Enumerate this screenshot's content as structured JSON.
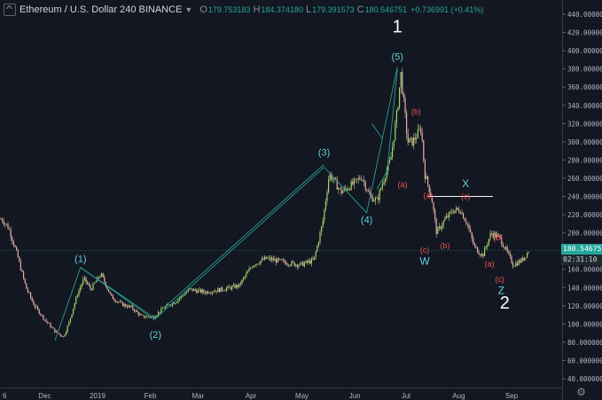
{
  "header": {
    "symbol_title": "Ethereum / U.S. Dollar 240 BINANCE",
    "open_key": "O",
    "open_val": "179.753183",
    "high_key": "H",
    "high_val": "184.374180",
    "low_key": "L",
    "low_val": "179.391573",
    "close_key": "C",
    "close_val": "180.546751",
    "change_val": "+0.736991 (+0.41%)"
  },
  "last_price_label": "180.546751",
  "countdown_label": "02:31:10",
  "icons": {
    "collapse": "chevron-collapse-icon",
    "settings": "gear-icon",
    "scroll": "arrow-icon"
  },
  "colors": {
    "background": "#131722",
    "candle_up": "#a5d66a",
    "candle_down": "#e6b0a8",
    "wave_line": "#2a9d8f",
    "label_cyan": "#5fd0d8",
    "label_red": "#ef5350",
    "label_white": "#ffffff",
    "xline": "#f5f5f5",
    "price_tag": "#26a69a"
  },
  "chart_data": {
    "type": "line",
    "title": "Ethereum / U.S. Dollar 240 BINANCE",
    "xlabel": "",
    "ylabel": "",
    "ylim": [
      30,
      450
    ],
    "y_ticks": [
      "440.000000",
      "420.000000",
      "400.000000",
      "380.000000",
      "360.000000",
      "340.000000",
      "320.000000",
      "300.000000",
      "280.000000",
      "260.000000",
      "240.000000",
      "220.000000",
      "200.000000",
      "180.000000",
      "160.000000",
      "140.000000",
      "120.000000",
      "100.000000",
      "80.000000",
      "60.000000",
      "40.000000"
    ],
    "x_ticks": [
      "6",
      "Dec",
      "2019",
      "Feb",
      "Mar",
      "Apr",
      "May",
      "Jun",
      "Jul",
      "Aug",
      "Sep"
    ],
    "last_price": 180.546751,
    "series": [
      {
        "x": [
          "2018-11-06",
          "2018-11-10",
          "2018-11-15",
          "2018-11-20",
          "2018-11-25",
          "2018-12-01",
          "2018-12-07",
          "2018-12-12",
          "2018-12-15",
          "2018-12-20",
          "2018-12-24",
          "2018-12-28",
          "2019-01-03",
          "2019-01-09",
          "2019-01-15",
          "2019-01-21",
          "2019-01-27",
          "2019-02-03",
          "2019-02-09",
          "2019-02-16",
          "2019-02-24",
          "2019-03-05",
          "2019-03-15",
          "2019-03-25",
          "2019-04-02",
          "2019-04-10",
          "2019-04-20",
          "2019-04-30",
          "2019-05-08",
          "2019-05-13",
          "2019-05-17",
          "2019-05-24",
          "2019-06-01",
          "2019-06-05",
          "2019-06-10",
          "2019-06-14",
          "2019-06-19",
          "2019-06-22",
          "2019-06-26",
          "2019-06-28",
          "2019-07-02",
          "2019-07-05",
          "2019-07-10",
          "2019-07-12",
          "2019-07-16",
          "2019-07-19",
          "2019-07-24",
          "2019-07-29",
          "2019-08-02",
          "2019-08-06",
          "2019-08-10",
          "2019-08-15",
          "2019-08-20",
          "2019-08-25",
          "2019-08-29",
          "2019-09-02",
          "2019-09-07",
          "2019-09-11"
        ],
        "values": [
          215,
          205,
          175,
          140,
          120,
          105,
          92,
          86,
          100,
          132,
          150,
          138,
          155,
          130,
          122,
          118,
          108,
          108,
          118,
          125,
          138,
          135,
          138,
          142,
          165,
          172,
          168,
          165,
          170,
          210,
          265,
          245,
          255,
          262,
          240,
          235,
          265,
          280,
          335,
          375,
          300,
          300,
          315,
          265,
          240,
          200,
          215,
          225,
          225,
          210,
          185,
          175,
          200,
          195,
          180,
          165,
          170,
          180
        ]
      }
    ],
    "wave_labels": [
      {
        "text": "(1)",
        "date": "2018-12-22",
        "price": 168,
        "color": "cyan"
      },
      {
        "text": "(2)",
        "date": "2019-02-04",
        "price": 85,
        "color": "cyan"
      },
      {
        "text": "(3)",
        "date": "2019-05-14",
        "price": 285,
        "color": "cyan"
      },
      {
        "text": "(4)",
        "date": "2019-06-08",
        "price": 211,
        "color": "cyan"
      },
      {
        "text": "(5)",
        "date": "2019-06-26",
        "price": 390,
        "color": "cyan"
      },
      {
        "text": "1",
        "date": "2019-06-26",
        "price": 420,
        "color": "white"
      },
      {
        "text": "(a)",
        "date": "2019-06-29",
        "price": 250,
        "color": "red"
      },
      {
        "text": "(b)",
        "date": "2019-07-07",
        "price": 330,
        "color": "red"
      },
      {
        "text": "(c)",
        "date": "2019-07-12",
        "price": 178,
        "color": "red"
      },
      {
        "text": "W",
        "date": "2019-07-12",
        "price": 165,
        "color": "cyan"
      },
      {
        "text": "(a)",
        "date": "2019-07-14",
        "price": 238,
        "color": "red"
      },
      {
        "text": "(b)",
        "date": "2019-07-24",
        "price": 183,
        "color": "red"
      },
      {
        "text": "(c)",
        "date": "2019-08-05",
        "price": 237,
        "color": "red"
      },
      {
        "text": "X",
        "date": "2019-08-05",
        "price": 250,
        "color": "cyan"
      },
      {
        "text": "(a)",
        "date": "2019-08-19",
        "price": 163,
        "color": "red"
      },
      {
        "text": "(b)",
        "date": "2019-08-24",
        "price": 192,
        "color": "red"
      },
      {
        "text": "(c)",
        "date": "2019-08-25",
        "price": 146,
        "color": "red"
      },
      {
        "text": "Z",
        "date": "2019-08-26",
        "price": 133,
        "color": "cyan"
      },
      {
        "text": "2",
        "date": "2019-08-28",
        "price": 117,
        "color": "white"
      }
    ],
    "wave_lines": [
      {
        "points": [
          [
            "2018-12-07",
            82
          ],
          [
            "2018-12-22",
            162
          ],
          [
            "2019-02-04",
            106
          ],
          [
            "2019-05-14",
            272
          ],
          [
            "2019-06-08",
            222
          ],
          [
            "2019-06-26",
            382
          ]
        ]
      },
      {
        "points": [
          [
            "2018-12-22",
            162
          ],
          [
            "2019-02-04",
            104
          ]
        ]
      },
      {
        "points": [
          [
            "2019-02-09",
            118
          ],
          [
            "2019-05-14",
            275
          ]
        ]
      },
      {
        "points": [
          [
            "2019-06-14",
            248
          ],
          [
            "2019-06-20",
            268
          ],
          [
            "2019-06-26",
            380
          ]
        ]
      },
      {
        "points": [
          [
            "2019-06-11",
            320
          ],
          [
            "2019-06-17",
            304
          ]
        ]
      }
    ],
    "resistance": {
      "price": 240,
      "from": "2019-07-14",
      "to": "2019-08-21"
    }
  }
}
